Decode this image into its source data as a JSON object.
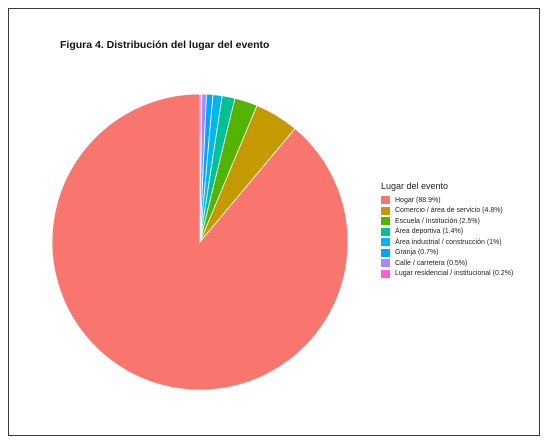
{
  "chart_data": {
    "type": "pie",
    "title": "Figura 4. Distribución del lugar del evento",
    "legend": {
      "title": "Lugar del evento",
      "placement": "right"
    },
    "slices": [
      {
        "label": "Hogar (88.9%)",
        "value": 88.9,
        "color": "#f8766d"
      },
      {
        "label": "Comercio / área de servicio (4.8%)",
        "value": 4.8,
        "color": "#c49a00"
      },
      {
        "label": "Escuela / Institución (2.5%)",
        "value": 2.5,
        "color": "#53b400"
      },
      {
        "label": "Área deportiva (1.4%)",
        "value": 1.4,
        "color": "#00c094"
      },
      {
        "label": "Área industrial / construcción (1%)",
        "value": 1.0,
        "color": "#00b6eb"
      },
      {
        "label": "Granja (0.7%)",
        "value": 0.7,
        "color": "#06a4ff"
      },
      {
        "label": "Calle / carretera (0.5%)",
        "value": 0.5,
        "color": "#a58aff"
      },
      {
        "label": "Lugar residencial / institucional (0.2%)",
        "value": 0.2,
        "color": "#fb61d7"
      }
    ]
  }
}
